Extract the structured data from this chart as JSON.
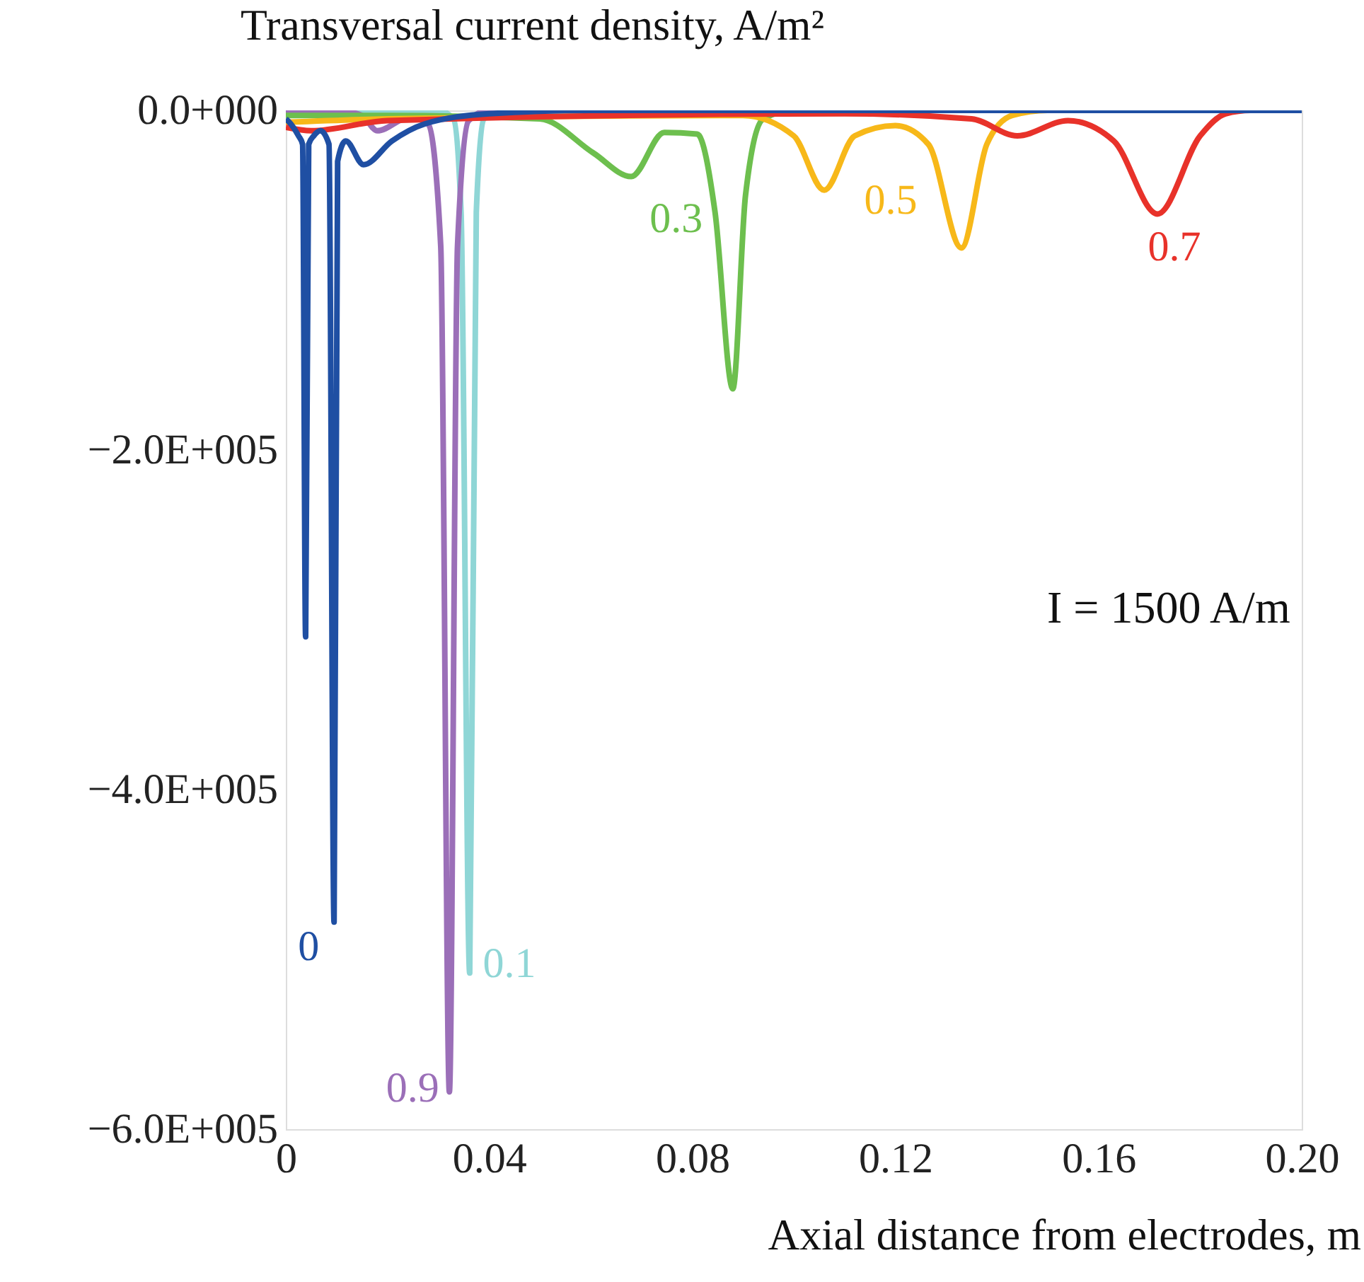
{
  "chart_data": {
    "type": "line",
    "ylabel": "Transversal current density, A/m²",
    "xlabel": "Axial distance from electrodes, m",
    "annotations": [
      "I = 1500 A/m"
    ],
    "xlim": [
      0,
      0.2
    ],
    "xticks": [
      0,
      0.04,
      0.08,
      0.12,
      0.16,
      {
        "value": 0.2,
        "label": "0.20"
      }
    ],
    "ylim": [
      -600000,
      0
    ],
    "yticks": [
      {
        "value": 0,
        "label": "0.0+000"
      },
      {
        "value": -200000,
        "label": "−2.0E+005"
      },
      {
        "value": -400000,
        "label": "−4.0E+005"
      },
      {
        "value": -600000,
        "label": "−6.0E+005"
      }
    ],
    "grid": false,
    "legend": false,
    "marker": "none",
    "line_style": "solid",
    "series": [
      {
        "name": "0.1",
        "color": "#8fd6d6",
        "x": [
          0,
          0.03,
          0.033,
          0.0345,
          0.0362,
          0.0375,
          0.039,
          0.042,
          0.2
        ],
        "values": [
          -2000,
          0,
          -5000,
          -60000,
          -508000,
          -60000,
          -5000,
          0,
          0
        ]
      },
      {
        "name": "0.9",
        "color": "#9b6fb8",
        "x": [
          0,
          0.01,
          0.015,
          0.018,
          0.0245,
          0.028,
          0.0305,
          0.0322,
          0.0338,
          0.036,
          0.04,
          0.2
        ],
        "values": [
          0,
          0,
          -3000,
          -12000,
          -4000,
          -8000,
          -80000,
          -578000,
          -80000,
          -6000,
          0,
          0
        ]
      },
      {
        "name": "0.3",
        "color": "#6dbf4e",
        "x": [
          0,
          0.02,
          0.05,
          0.0605,
          0.068,
          0.0745,
          0.081,
          0.0845,
          0.088,
          0.0905,
          0.094,
          0.1,
          0.2
        ],
        "values": [
          -3000,
          -3000,
          -5000,
          -25000,
          -39000,
          -13000,
          -14000,
          -60000,
          -164000,
          -50000,
          -5000,
          0,
          0
        ]
      },
      {
        "name": "0.5",
        "color": "#f7b819",
        "x": [
          0,
          0.02,
          0.09,
          0.1,
          0.106,
          0.112,
          0.12,
          0.1265,
          0.133,
          0.138,
          0.143,
          0.15,
          0.2
        ],
        "values": [
          -7000,
          -5000,
          -3000,
          -15000,
          -47000,
          -15000,
          -9000,
          -20000,
          -81000,
          -20000,
          -3000,
          0,
          0
        ]
      },
      {
        "name": "0.7",
        "color": "#e8322a",
        "x": [
          0,
          0.005,
          0.02,
          0.11,
          0.135,
          0.144,
          0.154,
          0.163,
          0.1716,
          0.18,
          0.185,
          0.19,
          0.2
        ],
        "values": [
          -10000,
          -12000,
          -6000,
          -2000,
          -5000,
          -15000,
          -6000,
          -18000,
          -61000,
          -15000,
          -2000,
          0,
          0
        ]
      },
      {
        "name": "0",
        "color": "#1f4fa3",
        "x": [
          0,
          0.001,
          0.0025,
          0.0033,
          0.0039,
          0.0045,
          0.0055,
          0.0068,
          0.0085,
          0.0095,
          0.0102,
          0.0118,
          0.0153,
          0.0209,
          0.0273,
          0.04,
          0.06,
          0.2
        ],
        "values": [
          -5000,
          -8000,
          -15000,
          -20000,
          -310000,
          -20000,
          -15000,
          -12000,
          -20000,
          -478000,
          -30000,
          -18000,
          -32000,
          -18000,
          -8000,
          -2000,
          0,
          0
        ]
      }
    ]
  }
}
